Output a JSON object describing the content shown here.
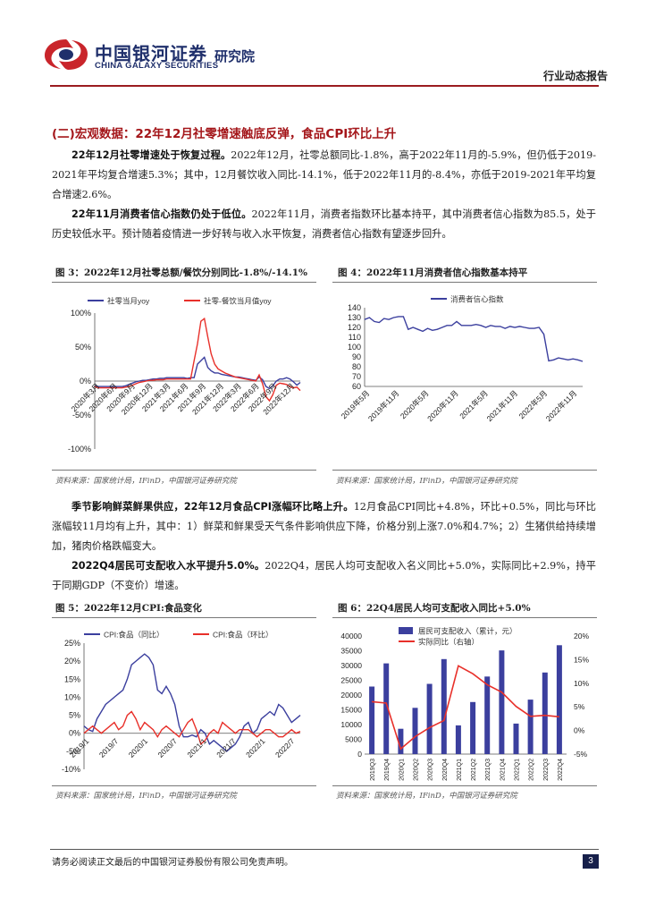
{
  "header": {
    "logo_cn": "中国银河证券",
    "logo_en": "CHINA GALAXY SECURITIES",
    "institute": "研究院",
    "report_type": "行业动态报告"
  },
  "section_title": "(二)宏观数据：22年12月社零增速触底反弹，食品CPI环比上升",
  "paragraphs": {
    "p1_bold": "22年12月社零增速处于恢复过程。",
    "p1_rest": "2022年12月，社零总额同比-1.8%，高于2022年11月的-5.9%，但仍低于2019-2021年平均复合增速5.3%；其中，12月餐饮收入同比-14.1%，低于2022年11月的-8.4%，亦低于2019-2021年平均复合增速2.6%。",
    "p2_bold": "22年11月消费者信心指数仍处于低位。",
    "p2_rest": "2022年11月，消费者指数环比基本持平，其中消费者信心指数为85.5，处于历史较低水平。预计随着疫情进一步好转与收入水平恢复，消费者信心指数有望逐步回升。",
    "p3_bold": "季节影响鲜菜鲜果供应，22年12月食品CPI涨幅环比略上升。",
    "p3_rest": "12月食品CPI同比+4.8%，环比+0.5%，同比与环比涨幅较11月均有上升，其中：1）鲜菜和鲜果受天气条件影响供应下降，价格分别上涨7.0%和4.7%；2）生猪供给持续增加，猪肉价格跌幅变大。",
    "p4_bold": "2022Q4居民可支配收入水平提升5.0%。",
    "p4_rest": "2022Q4，居民人均可支配收入名义同比+5.0%，实际同比+2.9%，持平于同期GDP（不变价）增速。"
  },
  "figures": {
    "fig3": {
      "title": "图 3：2022年12月社零总额/餐饮分别同比-1.8%/-14.1%",
      "source": "资料来源：国家统计局，IFinD，中国银河证券研究院"
    },
    "fig4": {
      "title": "图 4：2022年11月消费者信心指数基本持平",
      "source": "资料来源：国家统计局，IFinD，中国银河证券研究院"
    },
    "fig5": {
      "title": "图 5：2022年12月CPI:食品变化",
      "source": "资料来源：国家统计局，IFinD，中国银河证券研究院"
    },
    "fig6": {
      "title": "图 6：22Q4居民人均可支配收入同比+5.0%",
      "source": "资料来源：国家统计局，IFinD，中国银河证券研究院"
    }
  },
  "footer": {
    "disclaimer": "请务必阅读正文最后的中国银河证券股份有限公司免责声明。",
    "page": "3"
  },
  "colors": {
    "accent_red": "#a4161a",
    "navy": "#1f2f6b",
    "series_blue": "#3b3f9e",
    "series_red": "#e8302a"
  },
  "chart_data": [
    {
      "id": "fig3",
      "type": "line",
      "legend": [
        "社零当月yoy",
        "社零-餐饮当月值yoy"
      ],
      "legend_position": "top-left",
      "yticks": [
        "100%",
        "50%",
        "0%",
        "-50%",
        "-100%"
      ],
      "ylim": [
        -100,
        100
      ],
      "xticks": [
        "2020年3月",
        "2020年6月",
        "2020年9月",
        "2020年12月",
        "2021年3月",
        "2021年6月",
        "2021年9月",
        "2021年12月",
        "2022年3月",
        "2022年6月",
        "2022年9月",
        "2022年12月"
      ],
      "series": [
        {
          "name": "社零当月yoy",
          "color": "#3b3f9e",
          "values": [
            -7,
            -8,
            -8,
            -8,
            -8,
            -8,
            -8,
            -8,
            -8,
            -7,
            -5,
            -3,
            -1,
            0,
            1,
            1,
            2,
            3,
            3,
            4,
            4,
            5,
            5,
            5,
            5,
            5,
            5,
            4,
            5,
            5,
            25,
            30,
            35,
            20,
            15,
            12,
            12,
            10,
            9,
            8,
            7,
            6,
            6,
            5,
            4,
            3,
            2,
            1,
            6,
            2,
            -8,
            -11,
            -7,
            0,
            3,
            3,
            5,
            3,
            -1,
            -6,
            -2
          ]
        },
        {
          "name": "社零-餐饮当月值yoy",
          "color": "#e8302a",
          "values": [
            -8,
            -10,
            -10,
            -10,
            -10,
            -10,
            -10,
            -10,
            -10,
            -9,
            -8,
            -6,
            -4,
            -2,
            -1,
            0,
            1,
            1,
            2,
            2,
            2,
            3,
            3,
            3,
            3,
            3,
            3,
            3,
            3,
            30,
            55,
            88,
            92,
            65,
            40,
            25,
            18,
            15,
            12,
            10,
            8,
            6,
            5,
            4,
            3,
            2,
            1,
            0,
            9,
            -4,
            -23,
            -29,
            -20,
            -6,
            -3,
            -4,
            -5,
            -8,
            -10,
            -9,
            -14
          ]
        }
      ]
    },
    {
      "id": "fig4",
      "type": "line",
      "legend": [
        "消费者信心指数"
      ],
      "legend_position": "top-right",
      "yticks": [
        "140",
        "130",
        "120",
        "110",
        "100",
        "90",
        "80",
        "70",
        "60"
      ],
      "ylim": [
        60,
        140
      ],
      "xticks": [
        "2019年5月",
        "2019年11月",
        "2020年5月",
        "2020年11月",
        "2021年5月",
        "2021年11月",
        "2022年5月",
        "2022年11月"
      ],
      "series": [
        {
          "name": "消费者信心指数",
          "color": "#3b3f9e",
          "values": [
            128,
            130,
            126,
            125,
            129,
            128,
            130,
            131,
            131,
            118,
            120,
            118,
            116,
            119,
            117,
            118,
            120,
            122,
            122,
            126,
            122,
            122,
            122,
            123,
            122,
            120,
            122,
            121,
            121,
            119,
            121,
            120,
            121,
            120,
            119,
            119,
            120,
            113,
            86,
            87,
            89,
            88,
            87,
            88,
            87,
            85.5
          ]
        }
      ]
    },
    {
      "id": "fig5",
      "type": "line",
      "legend": [
        "CPI:食品（同比）",
        "CPI:食品（环比）"
      ],
      "legend_position": "top",
      "yticks": [
        "25%",
        "20%",
        "15%",
        "10%",
        "5%",
        "0%",
        "-5%",
        "-10%"
      ],
      "ylim": [
        -10,
        25
      ],
      "xticks": [
        "2019/1",
        "2019/7",
        "2020/1",
        "2020/7",
        "2021/1",
        "2021/7",
        "2022/1",
        "2022/7"
      ],
      "series": [
        {
          "name": "CPI:食品（同比）",
          "color": "#3b3f9e",
          "values": [
            2,
            1,
            0.5,
            4,
            6,
            8,
            9,
            10,
            11,
            12,
            15,
            19,
            20,
            21,
            22,
            21,
            19,
            12,
            11,
            13,
            11,
            8,
            2,
            -1,
            -1,
            -0.5,
            -1,
            1,
            0,
            -3,
            -2,
            -3,
            -4,
            -5,
            -4,
            -3,
            -1,
            2,
            3,
            0,
            1,
            4,
            5,
            6,
            5,
            8,
            7,
            5,
            3,
            4,
            5
          ]
        },
        {
          "name": "CPI:食品（环比）",
          "color": "#e8302a",
          "values": [
            0,
            1,
            2,
            1,
            0,
            1,
            2,
            3,
            1,
            2,
            5,
            6,
            4,
            1,
            3,
            2,
            1,
            -1,
            1,
            2,
            1,
            0,
            -1,
            1,
            3,
            4,
            1,
            -3,
            -2,
            0,
            1,
            0,
            3,
            2,
            1,
            0,
            1,
            1,
            1,
            0,
            -1,
            0,
            1,
            1,
            0,
            -1,
            -1,
            0,
            1,
            0,
            0.5
          ]
        }
      ]
    },
    {
      "id": "fig6",
      "type": "bar",
      "legend": [
        "居民可支配收入（累计，元）",
        "实际同比（右轴）"
      ],
      "legend_position": "top",
      "yticks": [
        "40000",
        "35000",
        "30000",
        "25000",
        "20000",
        "15000",
        "10000",
        "5000",
        "0"
      ],
      "yticks_right": [
        "20%",
        "15%",
        "10%",
        "5%",
        "0%",
        "-5%"
      ],
      "categories": [
        "2019Q3",
        "2019Q4",
        "2020Q1",
        "2020Q2",
        "2020Q3",
        "2020Q4",
        "2021Q1",
        "2021Q2",
        "2021Q3",
        "2021Q4",
        "2022Q1",
        "2022Q2",
        "2022Q3",
        "2022Q4"
      ],
      "series": [
        {
          "name": "居民可支配收入（累计，元）",
          "color": "#3b3f9e",
          "values": [
            22882,
            30733,
            8561,
            15666,
            23781,
            32189,
            9730,
            17642,
            26265,
            35128,
            10345,
            18463,
            27650,
            36883
          ]
        },
        {
          "name": "实际同比（右轴）",
          "color": "#e8302a",
          "axis": "right",
          "values": [
            6.1,
            5.8,
            -3.9,
            -1.3,
            0.6,
            2.1,
            13.7,
            12.0,
            9.7,
            8.1,
            5.1,
            3.0,
            3.2,
            2.9
          ]
        }
      ]
    }
  ]
}
